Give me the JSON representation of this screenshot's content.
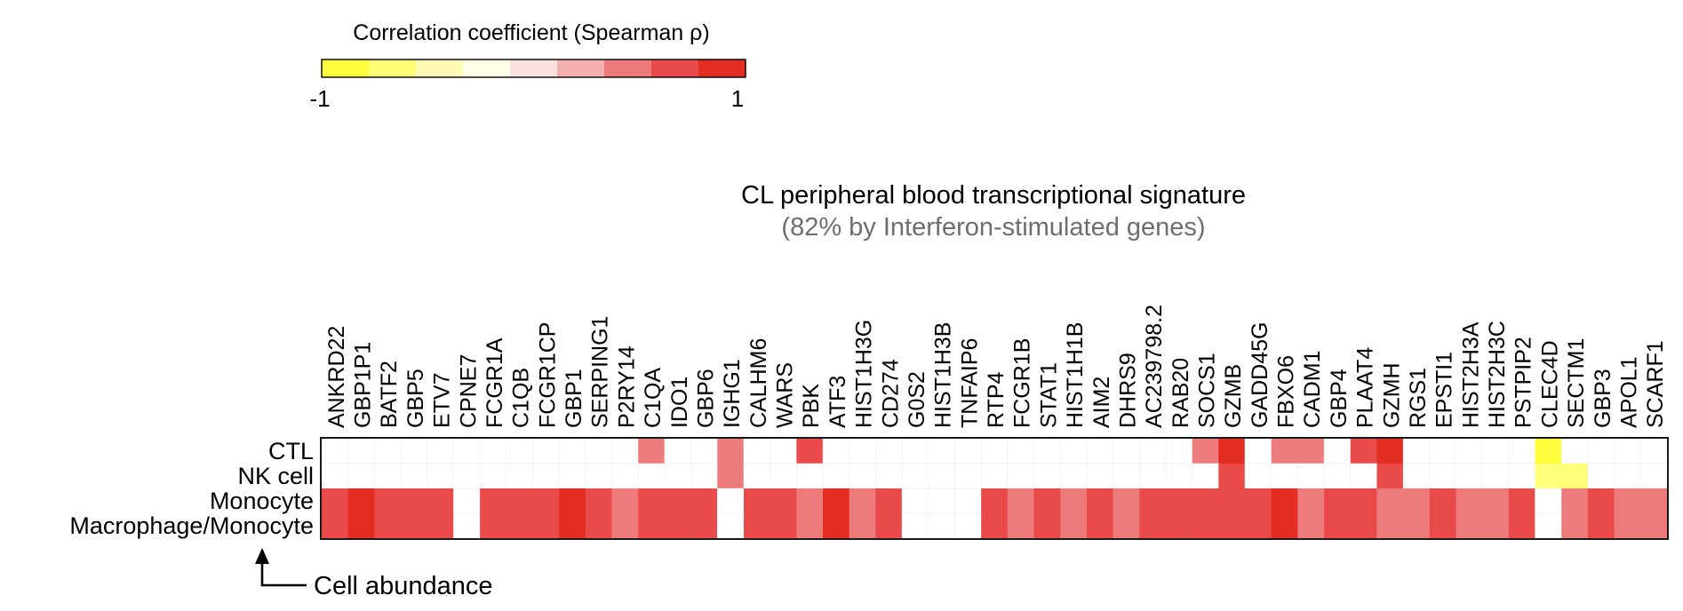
{
  "chart_data": {
    "type": "heatmap",
    "title": "CL peripheral blood transcriptional signature",
    "subtitle": "(82% by Interferon-stimulated genes)",
    "colorbar": {
      "label": "Correlation coefficient (Spearman ρ)",
      "min_label": "-1",
      "max_label": "1",
      "min": -1,
      "max": 1,
      "steps": [
        "#FFFF40",
        "#FFFF78",
        "#FFFBB4",
        "#FFFDE6",
        "#FCE1E1",
        "#F4AFAF",
        "#EE7B7B",
        "#E94A4A",
        "#E32D22"
      ]
    },
    "x_annotation": "Cell abundance",
    "columns": [
      "ANKRD22",
      "GBP1P1",
      "BATF2",
      "GBP5",
      "ETV7",
      "CPNE7",
      "FCGR1A",
      "C1QB",
      "FCGR1CP",
      "GBP1",
      "SERPING1",
      "P2RY14",
      "C1QA",
      "IDO1",
      "GBP6",
      "IGHG1",
      "CALHM6",
      "WARS",
      "PBK",
      "ATF3",
      "HIST1H3G",
      "CD274",
      "G0S2",
      "HIST1H3B",
      "TNFAIP6",
      "RTP4",
      "FCGR1B",
      "STAT1",
      "HIST1H1B",
      "AIM2",
      "DHRS9",
      "AC239798.2",
      "RAB20",
      "SOCS1",
      "GZMB",
      "GADD45G",
      "FBXO6",
      "CADM1",
      "GBP4",
      "PLAAT4",
      "GZMH",
      "RGS1",
      "EPSTI1",
      "HIST2H3A",
      "HIST2H3C",
      "PSTPIP2",
      "CLEC4D",
      "SECTM1",
      "GBP3",
      "APOL1",
      "SCARF1"
    ],
    "rows": [
      "CTL",
      "NK cell",
      "Monocyte",
      "Macrophage/Monocyte"
    ],
    "cell_groups": [
      [
        0,
        0,
        1,
        0
      ],
      [
        0,
        1,
        2,
        0
      ],
      [
        0,
        2,
        5,
        0
      ],
      [
        0,
        5,
        6,
        0
      ],
      [
        0,
        6,
        9,
        0
      ],
      [
        0,
        9,
        10,
        0
      ],
      [
        0,
        10,
        12,
        0
      ],
      [
        0,
        12,
        13,
        0.5
      ],
      [
        0,
        13,
        15,
        0
      ],
      [
        0,
        15,
        16,
        0.5
      ],
      [
        0,
        16,
        18,
        0
      ],
      [
        0,
        18,
        19,
        0.65
      ],
      [
        0,
        19,
        33,
        0
      ],
      [
        0,
        33,
        34,
        0.5
      ],
      [
        0,
        34,
        35,
        0.8
      ],
      [
        0,
        35,
        36,
        0
      ],
      [
        0,
        36,
        38,
        0.5
      ],
      [
        0,
        38,
        39,
        0
      ],
      [
        0,
        39,
        40,
        0.65
      ],
      [
        0,
        40,
        41,
        0.95
      ],
      [
        0,
        41,
        46,
        0
      ],
      [
        0,
        46,
        47,
        -0.8
      ],
      [
        0,
        47,
        51,
        0
      ],
      [
        1,
        0,
        15,
        0
      ],
      [
        1,
        15,
        16,
        0.5
      ],
      [
        1,
        16,
        34,
        0
      ],
      [
        1,
        34,
        35,
        0.65
      ],
      [
        1,
        35,
        40,
        0
      ],
      [
        1,
        40,
        41,
        0.65
      ],
      [
        1,
        41,
        46,
        0
      ],
      [
        1,
        46,
        48,
        -0.6
      ],
      [
        1,
        48,
        51,
        0
      ],
      [
        2,
        0,
        1,
        0.65
      ],
      [
        2,
        1,
        2,
        0.8
      ],
      [
        2,
        2,
        5,
        0.65
      ],
      [
        2,
        5,
        6,
        0
      ],
      [
        2,
        6,
        9,
        0.65
      ],
      [
        2,
        9,
        10,
        0.8
      ],
      [
        2,
        10,
        11,
        0.65
      ],
      [
        2,
        11,
        12,
        0.5
      ],
      [
        2,
        12,
        15,
        0.65
      ],
      [
        2,
        15,
        16,
        0
      ],
      [
        2,
        16,
        18,
        0.65
      ],
      [
        2,
        18,
        19,
        0.5
      ],
      [
        2,
        19,
        20,
        0.85
      ],
      [
        2,
        20,
        21,
        0.5
      ],
      [
        2,
        21,
        22,
        0.65
      ],
      [
        2,
        22,
        25,
        0
      ],
      [
        2,
        25,
        26,
        0.65
      ],
      [
        2,
        26,
        27,
        0.5
      ],
      [
        2,
        27,
        28,
        0.65
      ],
      [
        2,
        28,
        29,
        0.5
      ],
      [
        2,
        29,
        30,
        0.65
      ],
      [
        2,
        30,
        31,
        0.5
      ],
      [
        2,
        31,
        36,
        0.65
      ],
      [
        2,
        36,
        37,
        0.8
      ],
      [
        2,
        37,
        38,
        0.5
      ],
      [
        2,
        38,
        40,
        0.65
      ],
      [
        2,
        40,
        42,
        0.5
      ],
      [
        2,
        42,
        43,
        0.65
      ],
      [
        2,
        43,
        45,
        0.5
      ],
      [
        2,
        45,
        46,
        0.65
      ],
      [
        2,
        46,
        47,
        0
      ],
      [
        2,
        47,
        48,
        0.5
      ],
      [
        2,
        48,
        49,
        0.65
      ],
      [
        2,
        49,
        51,
        0.5
      ]
    ],
    "row_copies": [
      [
        3,
        2
      ]
    ]
  }
}
